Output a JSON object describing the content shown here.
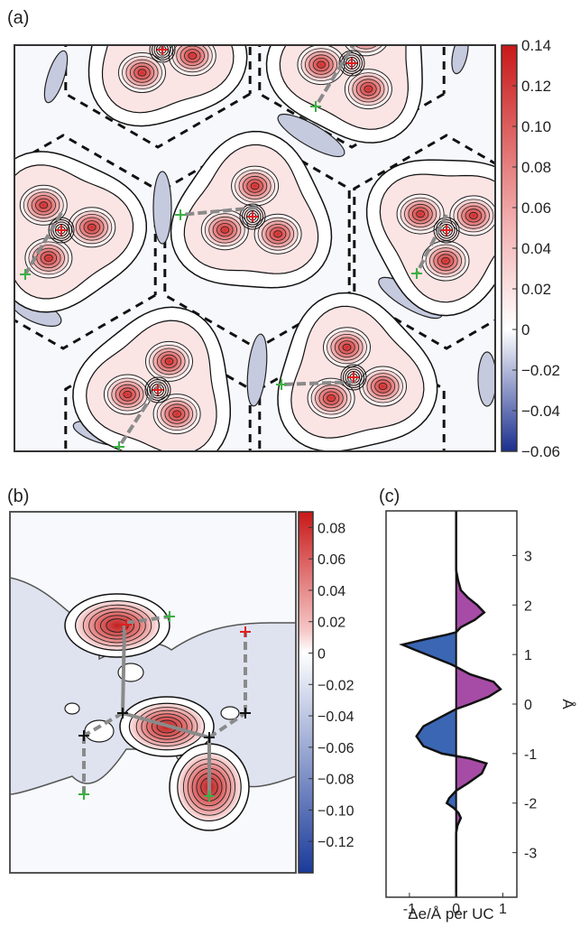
{
  "panels": {
    "a": {
      "label": "(a)"
    },
    "b": {
      "label": "(b)"
    },
    "c": {
      "label": "(c)"
    }
  },
  "colors": {
    "positive_max": "#d42020",
    "negative_max": "#1a2f8f",
    "zero": "#ffffff",
    "contour": "#111111",
    "path_line": "#8a8a8a",
    "marker_red": "#e02020",
    "marker_green": "#3cb043",
    "marker_black": "#111111",
    "fill_positive": "#a64ca6",
    "fill_negative": "#3a66b4"
  },
  "chart_data": [
    {
      "type": "heatmap",
      "panel": "a",
      "colorbar": {
        "min": -0.06,
        "max": 0.14,
        "ticks": [
          0.14,
          0.12,
          0.1,
          0.08,
          0.06,
          0.04,
          0.02,
          0,
          -0.02,
          -0.04,
          -0.06
        ],
        "tick_labels": [
          "0.14",
          "0.12",
          "0.10",
          "0.08",
          "0.06",
          "0.04",
          "0.02",
          "0",
          "−0.02",
          "−0.04",
          "−0.06"
        ]
      }
    },
    {
      "type": "heatmap",
      "panel": "b",
      "colorbar": {
        "min": -0.14,
        "max": 0.09,
        "ticks": [
          0.08,
          0.06,
          0.04,
          0.02,
          0,
          -0.02,
          -0.04,
          -0.06,
          -0.08,
          -0.1,
          -0.12
        ],
        "tick_labels": [
          "0.08",
          "0.06",
          "0.04",
          "0.02",
          "0",
          "−0.02",
          "−0.04",
          "−0.06",
          "−0.08",
          "−0.10",
          "−0.12"
        ]
      }
    },
    {
      "type": "area",
      "panel": "c",
      "xlabel": "Δe/Å per UC",
      "ylabel": "Å",
      "xlim": [
        -1.5,
        1.3
      ],
      "ylim": [
        -3.9,
        3.9
      ],
      "x_ticks": [
        -1,
        0,
        1
      ],
      "x_tick_labels": [
        "-1",
        "0",
        "1"
      ],
      "y_ticks": [
        3,
        2,
        1,
        0,
        -1,
        -2,
        -3
      ],
      "y_tick_labels": [
        "3",
        "2",
        "1",
        "0",
        "-1",
        "-2",
        "-3"
      ],
      "series": [
        {
          "points": [
            [
              0,
              3.9
            ],
            [
              0,
              3.2
            ],
            [
              0.0,
              2.7
            ],
            [
              0.04,
              2.5
            ],
            [
              0.1,
              2.3
            ],
            [
              0.25,
              2.15
            ],
            [
              0.45,
              2.0
            ],
            [
              0.6,
              1.85
            ],
            [
              0.4,
              1.7
            ],
            [
              0.1,
              1.55
            ],
            [
              0,
              1.45
            ],
            [
              -0.2,
              1.4
            ],
            [
              -0.7,
              1.3
            ],
            [
              -1.15,
              1.2
            ],
            [
              -0.9,
              1.1
            ],
            [
              -0.5,
              0.95
            ],
            [
              -0.1,
              0.8
            ],
            [
              0.0,
              0.75
            ],
            [
              0.3,
              0.6
            ],
            [
              0.8,
              0.45
            ],
            [
              0.95,
              0.3
            ],
            [
              0.7,
              0.15
            ],
            [
              0.3,
              0.0
            ],
            [
              0.0,
              -0.1
            ],
            [
              -0.3,
              -0.25
            ],
            [
              -0.7,
              -0.45
            ],
            [
              -0.85,
              -0.65
            ],
            [
              -0.7,
              -0.85
            ],
            [
              -0.3,
              -1.0
            ],
            [
              0.0,
              -1.05
            ],
            [
              0.3,
              -1.1
            ],
            [
              0.65,
              -1.2
            ],
            [
              0.55,
              -1.4
            ],
            [
              0.25,
              -1.6
            ],
            [
              0.0,
              -1.75
            ],
            [
              -0.15,
              -1.9
            ],
            [
              -0.2,
              -2.0
            ],
            [
              -0.05,
              -2.1
            ],
            [
              0.05,
              -2.2
            ],
            [
              0.1,
              -2.3
            ],
            [
              0.03,
              -2.45
            ],
            [
              0.0,
              -2.6
            ],
            [
              0.0,
              -3.9
            ]
          ]
        }
      ]
    }
  ]
}
